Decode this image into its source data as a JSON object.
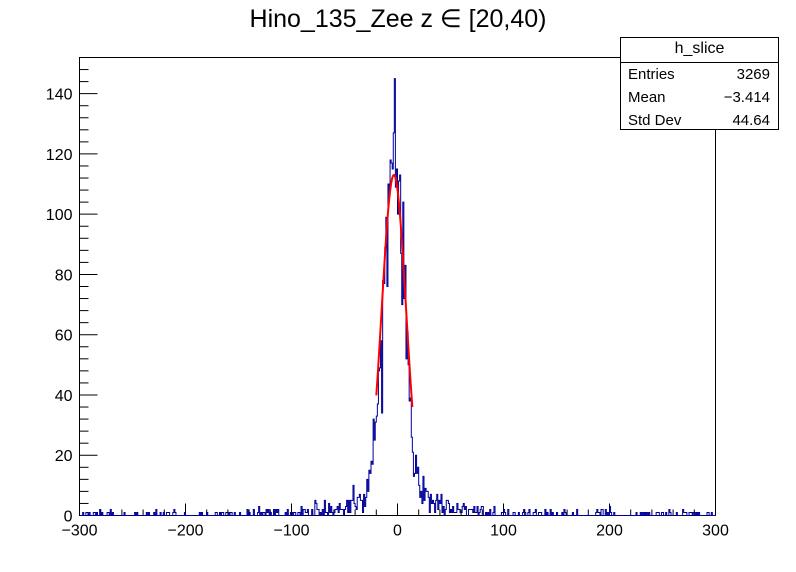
{
  "chart_data": {
    "type": "histogram",
    "title": "Hino_135_Zee z  ∈ [20,40)",
    "xlim": [
      -300,
      300
    ],
    "ylim": [
      0,
      152
    ],
    "x_ticks": [
      -300,
      -200,
      -100,
      0,
      100,
      200,
      300
    ],
    "x_tick_labels": [
      "−300",
      "−200",
      "−100",
      "0",
      "100",
      "200",
      "300"
    ],
    "y_ticks": [
      0,
      20,
      40,
      60,
      80,
      100,
      120,
      140
    ],
    "y_tick_labels": [
      "0",
      "20",
      "40",
      "60",
      "80",
      "100",
      "120",
      "140"
    ],
    "bin_width": 1,
    "peak_x": -3,
    "peak_value": 145,
    "series": [
      {
        "role": "histogram",
        "color": "#000099"
      },
      {
        "role": "fit",
        "color": "#ff0000",
        "function": "gaussian",
        "x_range": [
          -20,
          14
        ],
        "amplitude": 113,
        "mean": -3.4,
        "sigma": 11.5
      }
    ],
    "stats": {
      "name": "h_slice",
      "entries_label": "Entries",
      "entries": "3269",
      "mean_label": "Mean",
      "mean": "−3.414",
      "stddev_label": "Std Dev",
      "stddev": "44.64"
    },
    "grid": false
  }
}
